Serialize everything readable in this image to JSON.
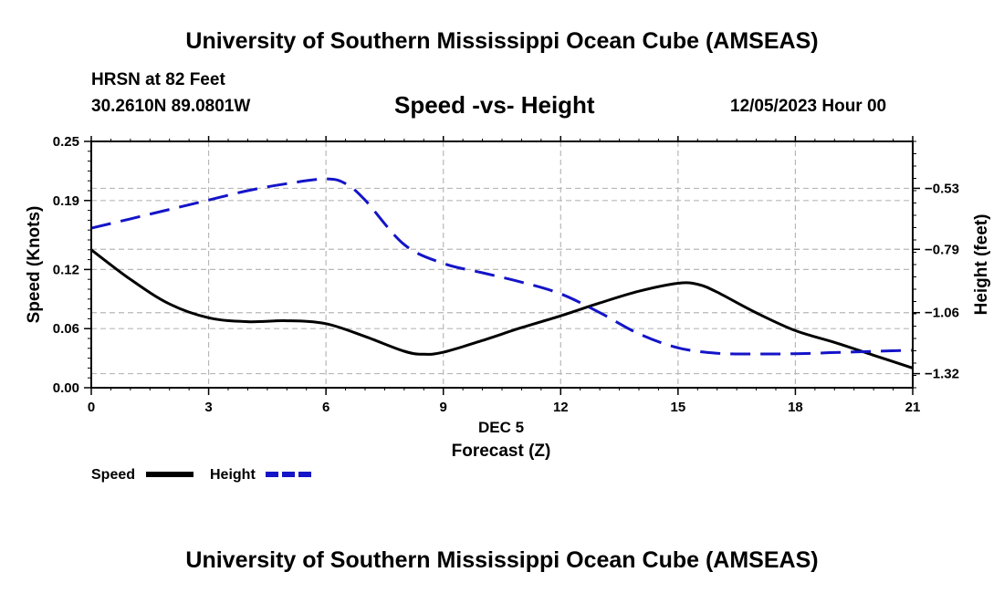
{
  "header": {
    "title": "University of Southern Mississippi Ocean Cube (AMSEAS)",
    "station": "HRSN at 82 Feet",
    "coords": "30.2610N  89.0801W",
    "subtitle": "Speed -vs- Height",
    "datetime": "12/05/2023 Hour 00"
  },
  "footer": {
    "title": "University of Southern Mississippi Ocean Cube (AMSEAS)"
  },
  "chart_data": {
    "type": "line",
    "xlabel": "Forecast (Z)",
    "xlabel_day": "DEC 5",
    "ylabel_left": "Speed (Knots)",
    "ylabel_right": "Height (feet)",
    "x_ticks": [
      0,
      3,
      6,
      9,
      12,
      15,
      18,
      21
    ],
    "x_tick_labels": [
      "0",
      "3",
      "6",
      "9",
      "12",
      "15",
      "18",
      "21"
    ],
    "xlim": [
      0,
      21
    ],
    "left_ticks": [
      0.0,
      0.06,
      0.12,
      0.19,
      0.25
    ],
    "left_tick_labels": [
      "0.00",
      "0.06",
      "0.12",
      "0.19",
      "0.25"
    ],
    "left_ylim": [
      0,
      0.25
    ],
    "right_ticks": [
      -0.53,
      -0.79,
      -1.06,
      -1.32
    ],
    "right_tick_labels": [
      "-0.53",
      "-0.79",
      "-1.06",
      "-1.32"
    ],
    "right_ylim": [
      -1.38,
      -0.33
    ],
    "grid": true,
    "series": [
      {
        "name": "Speed",
        "axis": "left",
        "color": "#000000",
        "style": "solid",
        "x": [
          0,
          1,
          2,
          3,
          4,
          5,
          6,
          7,
          8,
          8.5,
          9,
          10,
          11,
          12,
          13,
          14,
          15,
          15.5,
          16,
          17,
          18,
          19,
          20,
          21
        ],
        "values": [
          0.14,
          0.11,
          0.085,
          0.071,
          0.067,
          0.068,
          0.065,
          0.052,
          0.037,
          0.034,
          0.036,
          0.048,
          0.061,
          0.073,
          0.086,
          0.098,
          0.106,
          0.105,
          0.097,
          0.076,
          0.058,
          0.046,
          0.033,
          0.02
        ]
      },
      {
        "name": "Height",
        "axis": "right",
        "color": "#1414c8",
        "style": "dashed",
        "x": [
          0,
          1,
          2,
          3,
          4,
          5,
          6,
          6.5,
          7,
          8,
          9,
          10,
          11,
          12,
          13,
          14,
          15,
          16,
          17,
          18,
          19,
          20,
          21
        ],
        "values": [
          -0.7,
          -0.66,
          -0.62,
          -0.58,
          -0.54,
          -0.51,
          -0.49,
          -0.51,
          -0.58,
          -0.77,
          -0.85,
          -0.89,
          -0.93,
          -0.98,
          -1.06,
          -1.15,
          -1.21,
          -1.233,
          -1.236,
          -1.235,
          -1.23,
          -1.225,
          -1.22
        ]
      }
    ],
    "legend": [
      {
        "label": "Speed",
        "color": "#000000",
        "style": "solid"
      },
      {
        "label": "Height",
        "color": "#1414c8",
        "style": "dashed"
      }
    ],
    "legend_position": "bottom-left"
  }
}
